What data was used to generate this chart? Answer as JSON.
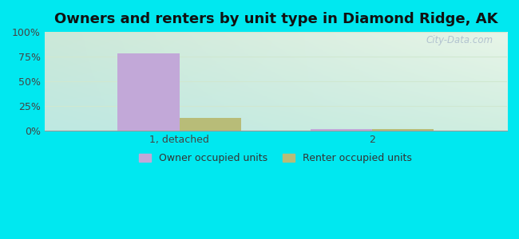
{
  "title": "Owners and renters by unit type in Diamond Ridge, AK",
  "categories": [
    "1, detached",
    "2"
  ],
  "owner_values": [
    78,
    2
  ],
  "renter_values": [
    13,
    2
  ],
  "owner_color": "#c2a8d8",
  "renter_color": "#b8bc78",
  "bar_width": 0.32,
  "ylim": [
    0,
    100
  ],
  "yticks": [
    0,
    25,
    50,
    75,
    100
  ],
  "ytick_labels": [
    "0%",
    "25%",
    "50%",
    "75%",
    "100%"
  ],
  "background_outer": "#00e8f0",
  "grid_color": "#d0e8d0",
  "watermark": "City-Data.com",
  "legend_owner": "Owner occupied units",
  "legend_renter": "Renter occupied units",
  "title_fontsize": 13,
  "tick_fontsize": 9,
  "bg_top_left": "#cce8d8",
  "bg_top_right": "#e8f5e8",
  "bg_bottom_left": "#c8e8e0",
  "bg_bottom_right": "#d8f0e0"
}
